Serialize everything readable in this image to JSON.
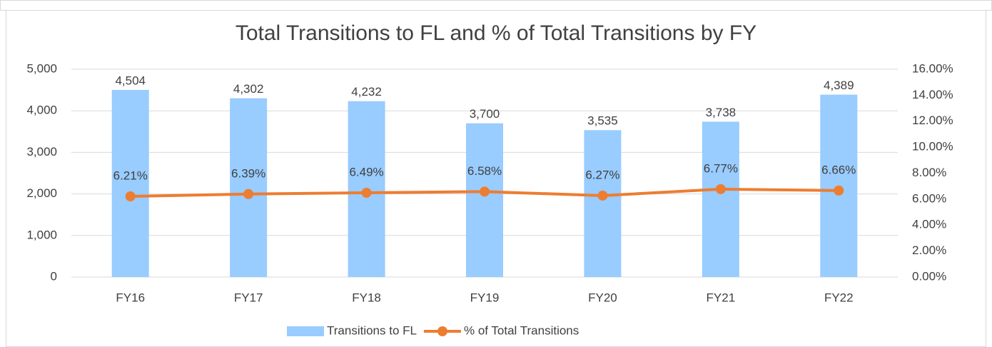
{
  "chart_data": {
    "type": "combo",
    "title": "Total Transitions to FL and % of Total Transitions by FY",
    "categories": [
      "FY16",
      "FY17",
      "FY18",
      "FY19",
      "FY20",
      "FY21",
      "FY22"
    ],
    "series": [
      {
        "name": "Transitions to FL",
        "type": "bar",
        "color": "#99ccff",
        "axis": "y",
        "values": [
          4504,
          4302,
          4232,
          3700,
          3535,
          3738,
          4389
        ],
        "value_labels": [
          "4,504",
          "4,302",
          "4,232",
          "3,700",
          "3,535",
          "3,738",
          "4,389"
        ]
      },
      {
        "name": "% of Total Transitions",
        "type": "line",
        "color": "#ed7d31",
        "axis": "y2",
        "values": [
          6.21,
          6.39,
          6.49,
          6.58,
          6.27,
          6.77,
          6.66
        ],
        "value_labels": [
          "6.21%",
          "6.39%",
          "6.49%",
          "6.58%",
          "6.27%",
          "6.77%",
          "6.66%"
        ]
      }
    ],
    "ylim": [
      0,
      5000
    ],
    "yticks": [
      0,
      {
        "value": 1000,
        "label": "1,000"
      },
      {
        "value": 2000,
        "label": "2,000"
      },
      {
        "value": 3000,
        "label": "3,000"
      },
      {
        "value": 4000,
        "label": "4,000"
      },
      {
        "value": 5000,
        "label": "5,000"
      }
    ],
    "y2lim": [
      0,
      16
    ],
    "y2ticks": [
      {
        "value": 0,
        "label": "0.00%"
      },
      {
        "value": 2,
        "label": "2.00%"
      },
      {
        "value": 4,
        "label": "4.00%"
      },
      {
        "value": 6,
        "label": "6.00%"
      },
      {
        "value": 8,
        "label": "8.00%"
      },
      {
        "value": 10,
        "label": "10.00%"
      },
      {
        "value": 12,
        "label": "12.00%"
      },
      {
        "value": 14,
        "label": "14.00%"
      },
      {
        "value": 16,
        "label": "16.00%"
      }
    ],
    "grid": true,
    "legend": "bottom"
  }
}
